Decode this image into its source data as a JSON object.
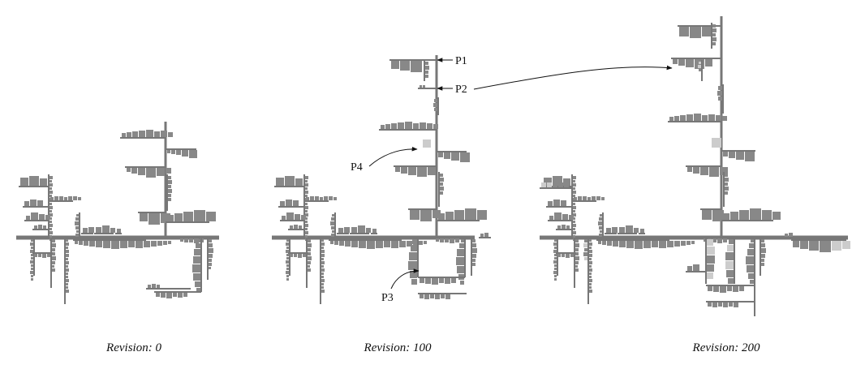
{
  "colors": {
    "trunk": "#777777",
    "square": "#888888",
    "new_square": "#cccccc",
    "annotation": "#111111"
  },
  "panels": [
    {
      "id": "rev0",
      "caption": "Revision: 0"
    },
    {
      "id": "rev100",
      "caption": "Revision: 100"
    },
    {
      "id": "rev200",
      "caption": "Revision: 200"
    }
  ],
  "annotations": [
    {
      "id": "p1",
      "label": "P1"
    },
    {
      "id": "p2",
      "label": "P2"
    },
    {
      "id": "p3",
      "label": "P3"
    },
    {
      "id": "p4",
      "label": "P4"
    }
  ]
}
